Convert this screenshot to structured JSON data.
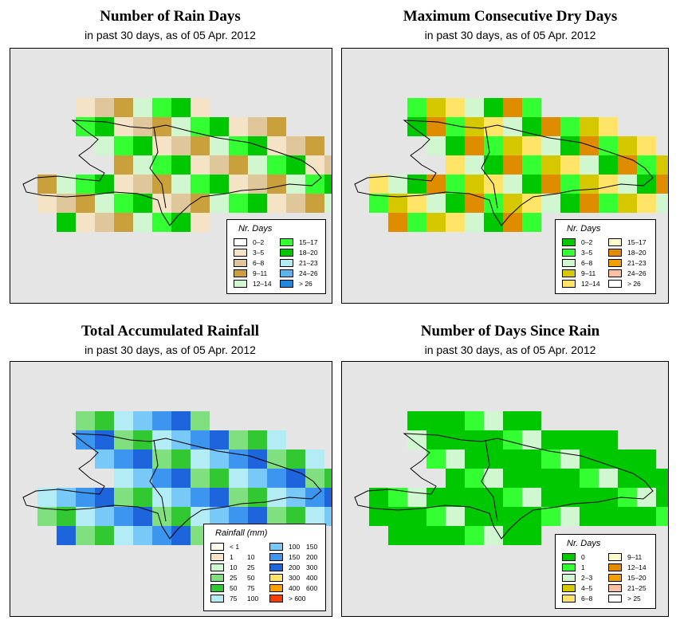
{
  "panels": [
    {
      "id": "rain-days",
      "title": "Number of Rain Days",
      "subtitle": "in past 30 days, as of  05 Apr. 2012",
      "legend": {
        "title": "Nr. Days",
        "items": [
          {
            "label": "0–2",
            "color": "#ffffff"
          },
          {
            "label": "3–5",
            "color": "#f5e3c6"
          },
          {
            "label": "6–8",
            "color": "#e0c79b"
          },
          {
            "label": "9–11",
            "color": "#c9a03c"
          },
          {
            "label": "12–14",
            "color": "#d1f7d0"
          },
          {
            "label": "15–17",
            "color": "#33ff33"
          },
          {
            "label": "18–20",
            "color": "#00c800"
          },
          {
            "label": "21–23",
            "color": "#b4ecf5"
          },
          {
            "label": "24–26",
            "color": "#5ab4f0"
          },
          {
            "label": "> 26",
            "color": "#2088d8"
          }
        ]
      }
    },
    {
      "id": "dry-days",
      "title": "Maximum Consecutive Dry Days",
      "subtitle": "in past 30 days, as of  05 Apr. 2012",
      "legend": {
        "title": "Nr. Days",
        "items": [
          {
            "label": "0–2",
            "color": "#00c800"
          },
          {
            "label": "3–5",
            "color": "#33ff33"
          },
          {
            "label": "6–8",
            "color": "#d1f7d0"
          },
          {
            "label": "9–11",
            "color": "#d6c800"
          },
          {
            "label": "12–14",
            "color": "#ffe468"
          },
          {
            "label": "15–17",
            "color": "#fffbc8"
          },
          {
            "label": "18–20",
            "color": "#e08c00"
          },
          {
            "label": "21–23",
            "color": "#f0a000"
          },
          {
            "label": "24–26",
            "color": "#f8c0a0"
          },
          {
            "label": "> 26",
            "color": "#ffffff"
          }
        ]
      }
    },
    {
      "id": "rainfall",
      "title": "Total Accumulated Rainfall",
      "subtitle": "in past 30 days, as of  05 Apr. 2012",
      "legend": {
        "title": "Rainfall (mm)",
        "items": [
          {
            "label": "< 1",
            "label2": "",
            "color": "#fffaf0"
          },
          {
            "label": "1",
            "label2": "10",
            "color": "#f5e3c6"
          },
          {
            "label": "10",
            "label2": "25",
            "color": "#d1f7d0"
          },
          {
            "label": "25",
            "label2": "50",
            "color": "#80e080"
          },
          {
            "label": "50",
            "label2": "75",
            "color": "#32c832"
          },
          {
            "label": "75",
            "label2": "100",
            "color": "#b4ecf5"
          },
          {
            "label": "100",
            "label2": "150",
            "color": "#78c8f8"
          },
          {
            "label": "150",
            "label2": "200",
            "color": "#3c96f0"
          },
          {
            "label": "200",
            "label2": "300",
            "color": "#1e64dc"
          },
          {
            "label": "300",
            "label2": "400",
            "color": "#ffe468"
          },
          {
            "label": "400",
            "label2": "600",
            "color": "#ffa000"
          },
          {
            "label": "> 600",
            "label2": "",
            "color": "#ff3c00"
          }
        ]
      }
    },
    {
      "id": "days-since-rain",
      "title": "Number of Days Since Rain",
      "subtitle": "in past 30 days, as of  05 Apr. 2012",
      "legend": {
        "title": "Nr. Days",
        "items": [
          {
            "label": "0",
            "color": "#00c800"
          },
          {
            "label": "1",
            "color": "#33ff33"
          },
          {
            "label": "2–3",
            "color": "#d1f7d0"
          },
          {
            "label": "4–5",
            "color": "#d6c800"
          },
          {
            "label": "6–8",
            "color": "#ffe468"
          },
          {
            "label": "9–11",
            "color": "#fffbc8"
          },
          {
            "label": "12–14",
            "color": "#e08c00"
          },
          {
            "label": "15–20",
            "color": "#f0a000"
          },
          {
            "label": "21–25",
            "color": "#f8c0a0"
          },
          {
            "label": "> 25",
            "color": "#ffffff"
          }
        ]
      }
    }
  ],
  "colors": {
    "map_background": "#e5e5e5",
    "coastline": "#000000"
  }
}
